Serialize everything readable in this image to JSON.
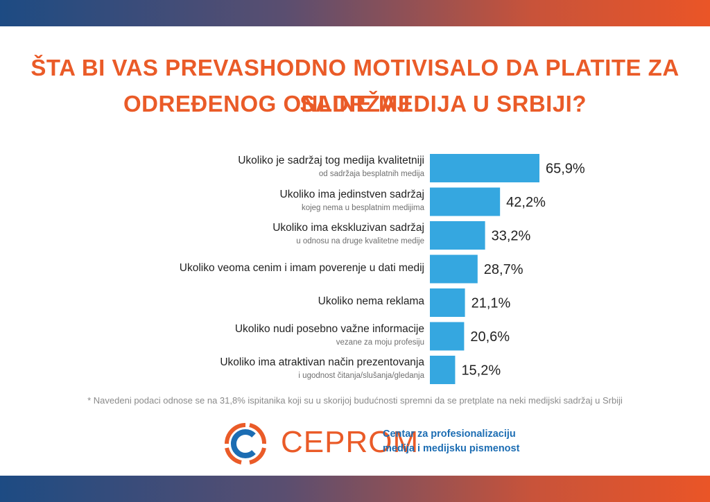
{
  "title_line1": "ŠTA BI VAS PREVASHODNO MOTIVISALO DA PLATITE ZA SADRŽAJ",
  "title_line2": "ODREĐENOG ONLINE MEDIJA U SRBIJI?",
  "chart_data": {
    "type": "bar",
    "orientation": "horizontal",
    "categories": [
      {
        "label": "Ukoliko je sadržaj tog medija kvalitetniji",
        "sub": "od sadržaja besplatnih medija"
      },
      {
        "label": "Ukoliko ima jedinstven sadržaj",
        "sub": "kojeg nema u besplatnim medijima"
      },
      {
        "label": "Ukoliko ima ekskluzivan sadržaj",
        "sub": "u odnosu na druge kvalitetne medije"
      },
      {
        "label": "Ukoliko veoma cenim i imam poverenje u dati medij",
        "sub": ""
      },
      {
        "label": "Ukoliko nema reklama",
        "sub": ""
      },
      {
        "label": "Ukoliko nudi posebno važne informacije",
        "sub": "vezane za moju profesiju"
      },
      {
        "label": "Ukoliko ima atraktivan način prezentovanja",
        "sub": "i ugodnost čitanja/slušanja/gledanja"
      }
    ],
    "values": [
      65.9,
      42.2,
      33.2,
      28.7,
      21.1,
      20.6,
      15.2
    ],
    "value_labels": [
      "65,9%",
      "42,2%",
      "33,2%",
      "28,7%",
      "21,1%",
      "20,6%",
      "15,2%"
    ],
    "bar_color": "#35a7e0",
    "grid": false,
    "legend": "none"
  },
  "footnote": "* Navedeni podaci odnose se na 31,8% ispitanika koji su u skorijoj budućnosti spremni da se pretplate na neki medijski sadržaj u Srbiji",
  "logo": {
    "icon": "cerprom-logo-icon",
    "brand": "CEPROM",
    "tagline_line1": "Centar za profesionalizaciju",
    "tagline_line2": "medija i medijsku pismenost"
  },
  "colors": {
    "accent": "#ea5b28",
    "brand_blue": "#1c6db3",
    "band_left": "#1d4b83",
    "band_right": "#ea5527"
  }
}
